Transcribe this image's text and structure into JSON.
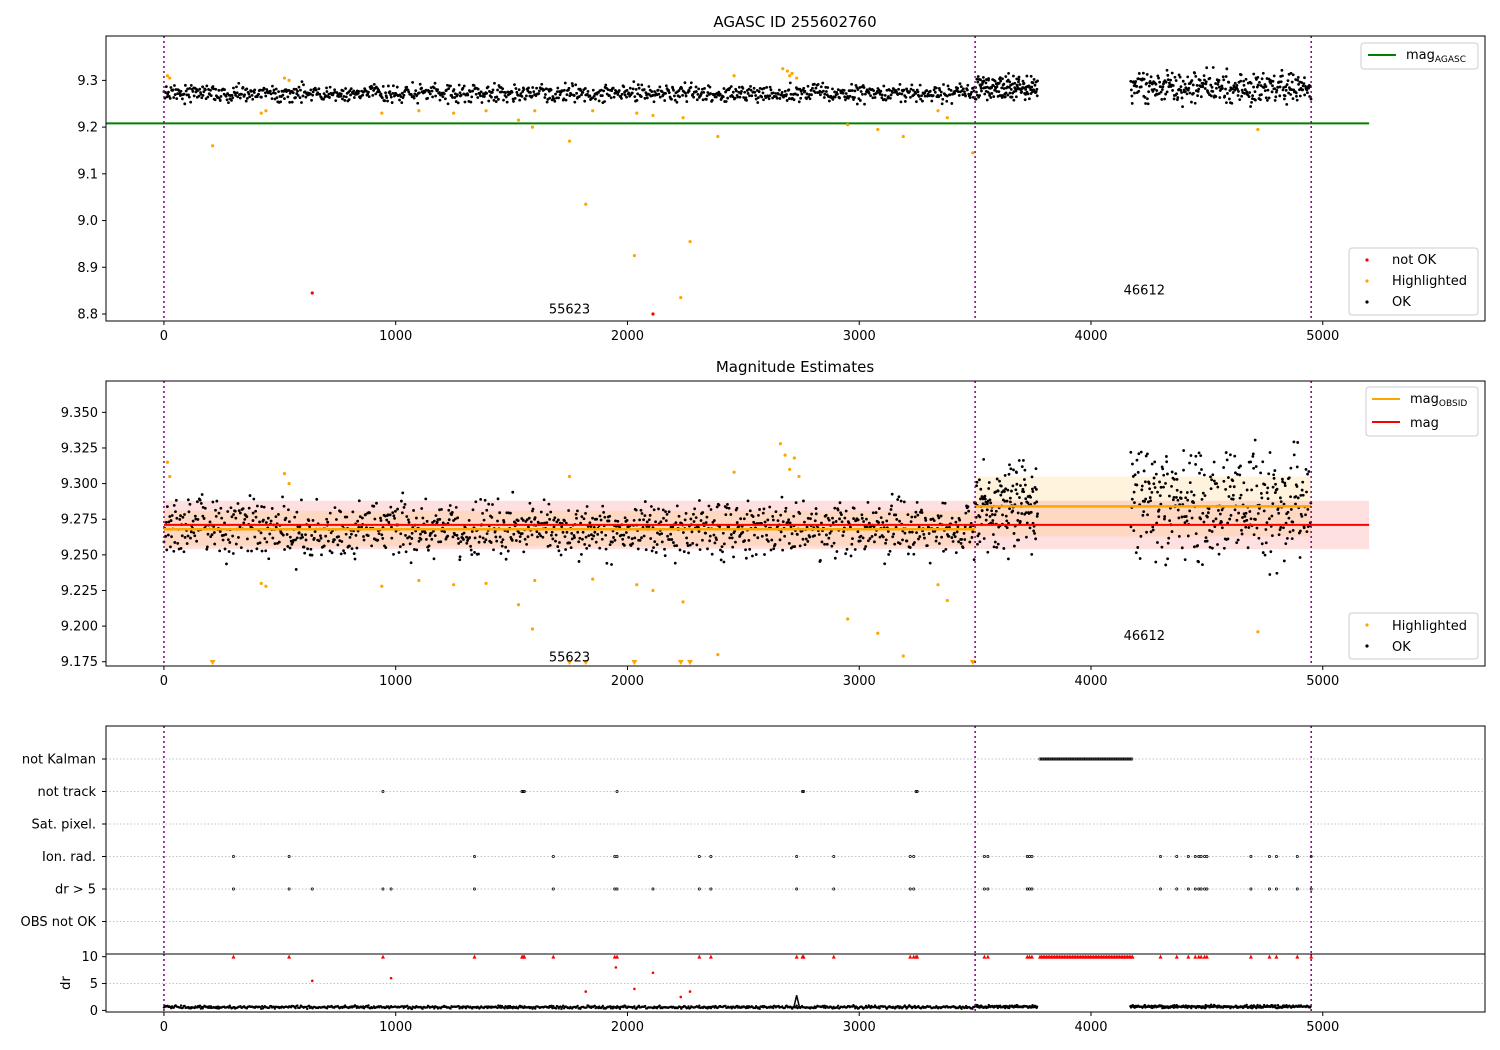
{
  "figure": {
    "colors": {
      "ok": "#000000",
      "not_ok": "#ff0000",
      "highlighted": "#ffa500",
      "mag_agasc": "#008000",
      "mag_obsid": "#ffa500",
      "mag": "#ff0000",
      "obs_boundary": "#800080",
      "grid": "#b0b0b0"
    }
  },
  "chart_data": [
    {
      "type": "scatter",
      "title": "AGASC ID 255602760",
      "xlabel": "",
      "ylabel": "",
      "xlim": [
        -250,
        5700
      ],
      "ylim": [
        8.785,
        9.395
      ],
      "x_ticks": [
        0,
        1000,
        2000,
        3000,
        4000,
        5000
      ],
      "y_ticks": [
        8.8,
        8.9,
        9.0,
        9.1,
        9.2,
        9.3
      ],
      "legend_lines": [
        {
          "label": "mag",
          "subscript": "AGASC",
          "color": "#008000"
        }
      ],
      "legend_markers": [
        {
          "label": "not OK",
          "color": "#ff0000"
        },
        {
          "label": "Highlighted",
          "color": "#ffa500"
        },
        {
          "label": "OK",
          "color": "#000000"
        }
      ],
      "obs_boundaries": [
        0,
        3500,
        4950
      ],
      "obs_labels": [
        {
          "text": "55623",
          "x": 1750,
          "y": 8.81
        },
        {
          "text": "46612",
          "x": 4230,
          "y": 8.85
        }
      ],
      "hline_mag_agasc": {
        "y": 9.208,
        "x": [
          -250,
          5200
        ]
      },
      "ok_segments": [
        {
          "x0": 0,
          "x1": 3500,
          "center": 9.272,
          "spread": 0.028,
          "n": 1100
        },
        {
          "x0": 3500,
          "x1": 3770,
          "center": 9.285,
          "spread": 0.04,
          "n": 150
        },
        {
          "x0": 4170,
          "x1": 4950,
          "center": 9.285,
          "spread": 0.05,
          "n": 330
        }
      ],
      "highlighted_points": [
        [
          15,
          9.31
        ],
        [
          25,
          9.305
        ],
        [
          210,
          9.16
        ],
        [
          420,
          9.23
        ],
        [
          440,
          9.235
        ],
        [
          520,
          9.305
        ],
        [
          540,
          9.3
        ],
        [
          940,
          9.23
        ],
        [
          1100,
          9.235
        ],
        [
          1250,
          9.23
        ],
        [
          1390,
          9.235
        ],
        [
          1530,
          9.215
        ],
        [
          1590,
          9.2
        ],
        [
          1600,
          9.235
        ],
        [
          1750,
          9.17
        ],
        [
          1820,
          9.035
        ],
        [
          1850,
          9.235
        ],
        [
          2030,
          8.925
        ],
        [
          2040,
          9.23
        ],
        [
          2110,
          9.225
        ],
        [
          2230,
          8.835
        ],
        [
          2240,
          9.22
        ],
        [
          2270,
          8.955
        ],
        [
          2390,
          9.18
        ],
        [
          2460,
          9.31
        ],
        [
          2670,
          9.325
        ],
        [
          2690,
          9.32
        ],
        [
          2700,
          9.31
        ],
        [
          2710,
          9.315
        ],
        [
          2730,
          9.305
        ],
        [
          2950,
          9.205
        ],
        [
          3080,
          9.195
        ],
        [
          3190,
          9.18
        ],
        [
          3340,
          9.235
        ],
        [
          3380,
          9.22
        ],
        [
          3490,
          9.145
        ],
        [
          4720,
          9.195
        ]
      ],
      "not_ok_points": [
        [
          640,
          8.845
        ],
        [
          2110,
          8.8
        ]
      ]
    },
    {
      "type": "scatter",
      "title": "Magnitude Estimates",
      "xlabel": "",
      "ylabel": "",
      "xlim": [
        -250,
        5700
      ],
      "ylim": [
        9.172,
        9.372
      ],
      "x_ticks": [
        0,
        1000,
        2000,
        3000,
        4000,
        5000
      ],
      "y_ticks": [
        9.175,
        9.2,
        9.225,
        9.25,
        9.275,
        9.3,
        9.325,
        9.35
      ],
      "legend_lines": [
        {
          "label": "mag",
          "subscript": "OBSID",
          "color": "#ffa500"
        },
        {
          "label": "mag",
          "subscript": "",
          "color": "#ff0000"
        }
      ],
      "legend_markers": [
        {
          "label": "Highlighted",
          "color": "#ffa500"
        },
        {
          "label": "OK",
          "color": "#000000"
        }
      ],
      "obs_boundaries": [
        0,
        3500,
        4950
      ],
      "obs_labels": [
        {
          "text": "55623",
          "x": 1750,
          "y": 9.178
        },
        {
          "text": "46612",
          "x": 4230,
          "y": 9.193
        }
      ],
      "mag_line": {
        "y": 9.271,
        "band": [
          9.254,
          9.288
        ],
        "x": [
          0,
          5200
        ]
      },
      "mag_obsid": [
        {
          "x0": 0,
          "x1": 3500,
          "y": 9.268,
          "band": [
            9.256,
            9.281
          ]
        },
        {
          "x0": 3500,
          "x1": 4950,
          "y": 9.284,
          "band": [
            9.263,
            9.305
          ]
        }
      ],
      "ok_segments": [
        {
          "x0": 0,
          "x1": 3500,
          "center": 9.268,
          "spread": 0.03,
          "n": 1200
        },
        {
          "x0": 3500,
          "x1": 3770,
          "center": 9.285,
          "spread": 0.045,
          "n": 160
        },
        {
          "x0": 4170,
          "x1": 4950,
          "center": 9.285,
          "spread": 0.06,
          "n": 360
        }
      ],
      "highlighted_points": [
        [
          15,
          9.315
        ],
        [
          25,
          9.305
        ],
        [
          420,
          9.23
        ],
        [
          440,
          9.228
        ],
        [
          520,
          9.307
        ],
        [
          540,
          9.3
        ],
        [
          940,
          9.228
        ],
        [
          1100,
          9.232
        ],
        [
          1250,
          9.229
        ],
        [
          1390,
          9.23
        ],
        [
          1530,
          9.215
        ],
        [
          1590,
          9.198
        ],
        [
          1600,
          9.232
        ],
        [
          1750,
          9.305
        ],
        [
          1850,
          9.233
        ],
        [
          2040,
          9.229
        ],
        [
          2110,
          9.225
        ],
        [
          2240,
          9.217
        ],
        [
          2390,
          9.18
        ],
        [
          2460,
          9.308
        ],
        [
          2660,
          9.328
        ],
        [
          2680,
          9.32
        ],
        [
          2700,
          9.31
        ],
        [
          2720,
          9.318
        ],
        [
          2740,
          9.305
        ],
        [
          2950,
          9.205
        ],
        [
          3080,
          9.195
        ],
        [
          3190,
          9.179
        ],
        [
          3340,
          9.229
        ],
        [
          3380,
          9.218
        ],
        [
          4720,
          9.196
        ]
      ],
      "clipped_markers_x": [
        210,
        1750,
        1820,
        2030,
        2230,
        2270,
        3490
      ]
    },
    {
      "type": "scatter",
      "title": "",
      "xlabel": "",
      "ylabel": "",
      "xlim": [
        -250,
        5700
      ],
      "x_ticks": [
        0,
        1000,
        2000,
        3000,
        4000,
        5000
      ],
      "categories": [
        "not Kalman",
        "not track",
        "Sat. pixel.",
        "Ion. rad.",
        "dr > 5",
        "OBS not OK"
      ],
      "obs_boundaries": [
        0,
        3500,
        4950
      ],
      "flags": [
        {
          "category": "not Kalman",
          "x": [
            3780,
            4180
          ],
          "range": true
        },
        {
          "category": "not track",
          "x": [
            945,
            1545,
            1550,
            1555,
            1955,
            2755,
            2760,
            3245,
            3250
          ]
        },
        {
          "category": "Sat. pixel.",
          "x": []
        },
        {
          "category": "Ion. rad.",
          "x": [
            300,
            540,
            1340,
            1680,
            1945,
            1955,
            2310,
            2360,
            2730,
            2890,
            3220,
            3235,
            3540,
            3555,
            3725,
            3735,
            3745,
            4300,
            4370,
            4420,
            4450,
            4465,
            4475,
            4490,
            4500,
            4690,
            4770,
            4800,
            4890,
            4950
          ]
        },
        {
          "category": "dr > 5",
          "x": [
            300,
            540,
            640,
            945,
            980,
            1340,
            1680,
            1945,
            1955,
            2110,
            2310,
            2360,
            2730,
            2890,
            3220,
            3235,
            3540,
            3555,
            3725,
            3735,
            3745,
            4300,
            4370,
            4420,
            4450,
            4465,
            4475,
            4490,
            4500,
            4690,
            4770,
            4800,
            4890,
            4950
          ]
        },
        {
          "category": "OBS not OK",
          "x": []
        }
      ]
    },
    {
      "type": "scatter",
      "title": "",
      "xlabel": "",
      "ylabel": "dr",
      "xlim": [
        -250,
        5700
      ],
      "ylim": [
        -0.3,
        10.5
      ],
      "x_ticks": [
        0,
        1000,
        2000,
        3000,
        4000,
        5000
      ],
      "y_ticks": [
        0,
        5,
        10
      ],
      "obs_boundaries": [
        0,
        3500,
        4950
      ],
      "ok_segments": [
        {
          "x0": 0,
          "x1": 3500,
          "center": 0.6,
          "spread": 0.4,
          "n": 900
        },
        {
          "x0": 3500,
          "x1": 3770,
          "center": 0.7,
          "spread": 0.4,
          "n": 110
        },
        {
          "x0": 4170,
          "x1": 4950,
          "center": 0.7,
          "spread": 0.4,
          "n": 300
        }
      ],
      "spike": {
        "x": 2730,
        "y": 2.8
      },
      "outlier_points": [
        [
          640,
          5.5
        ],
        [
          980,
          6.0
        ],
        [
          1820,
          3.5
        ],
        [
          1950,
          8.0
        ],
        [
          2030,
          4.0
        ],
        [
          2110,
          7.0
        ],
        [
          2270,
          3.5
        ],
        [
          2230,
          2.5
        ]
      ],
      "clipped_markers_x": [
        300,
        540,
        945,
        1340,
        1545,
        1550,
        1555,
        1680,
        1945,
        1955,
        2310,
        2360,
        2730,
        2755,
        2760,
        2890,
        3220,
        3235,
        3245,
        3250,
        3540,
        3555,
        3725,
        3735,
        3745,
        4300,
        4370,
        4420,
        4450,
        4465,
        4475,
        4490,
        4500,
        4690,
        4770,
        4800,
        4890,
        4950
      ],
      "clipped_range": [
        3780,
        4180
      ]
    }
  ]
}
